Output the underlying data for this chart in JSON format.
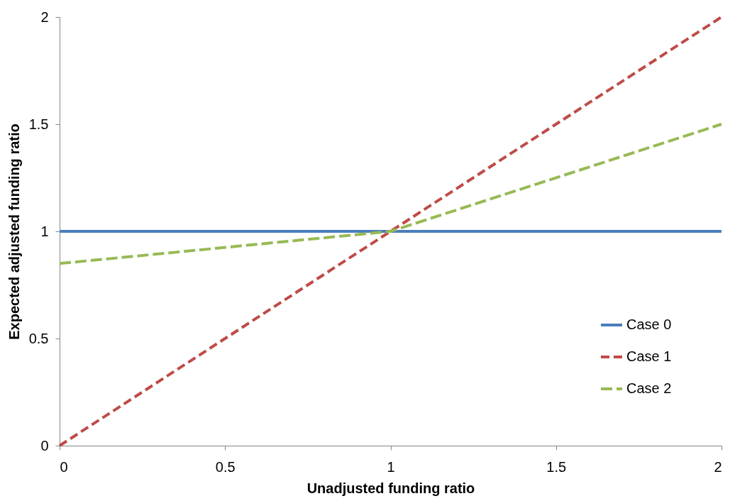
{
  "chart_data": {
    "type": "line",
    "xlabel": "Unadjusted funding ratio",
    "ylabel": "Expected adjusted funding ratio",
    "xlim": [
      0,
      2
    ],
    "xticks": [
      0,
      0.5,
      1,
      1.5,
      2
    ],
    "ylim": [
      0,
      2
    ],
    "yticks": [
      0,
      0.5,
      1,
      1.5,
      2
    ],
    "grid": false,
    "legend": "bottom right",
    "marker": "none",
    "series": [
      {
        "name": "Case 0",
        "color": "#4a7ebb",
        "line_style": "solid",
        "x": [
          0,
          2
        ],
        "values": [
          1,
          1
        ]
      },
      {
        "name": "Case 1",
        "color": "#be4b48",
        "line_style": "dashed",
        "x": [
          0,
          2
        ],
        "values": [
          0,
          2
        ]
      },
      {
        "name": "Case 2",
        "color": "#98b954",
        "line_style": "dashed",
        "x": [
          0,
          1,
          2
        ],
        "values": [
          0.85,
          1,
          1.5
        ]
      }
    ]
  }
}
